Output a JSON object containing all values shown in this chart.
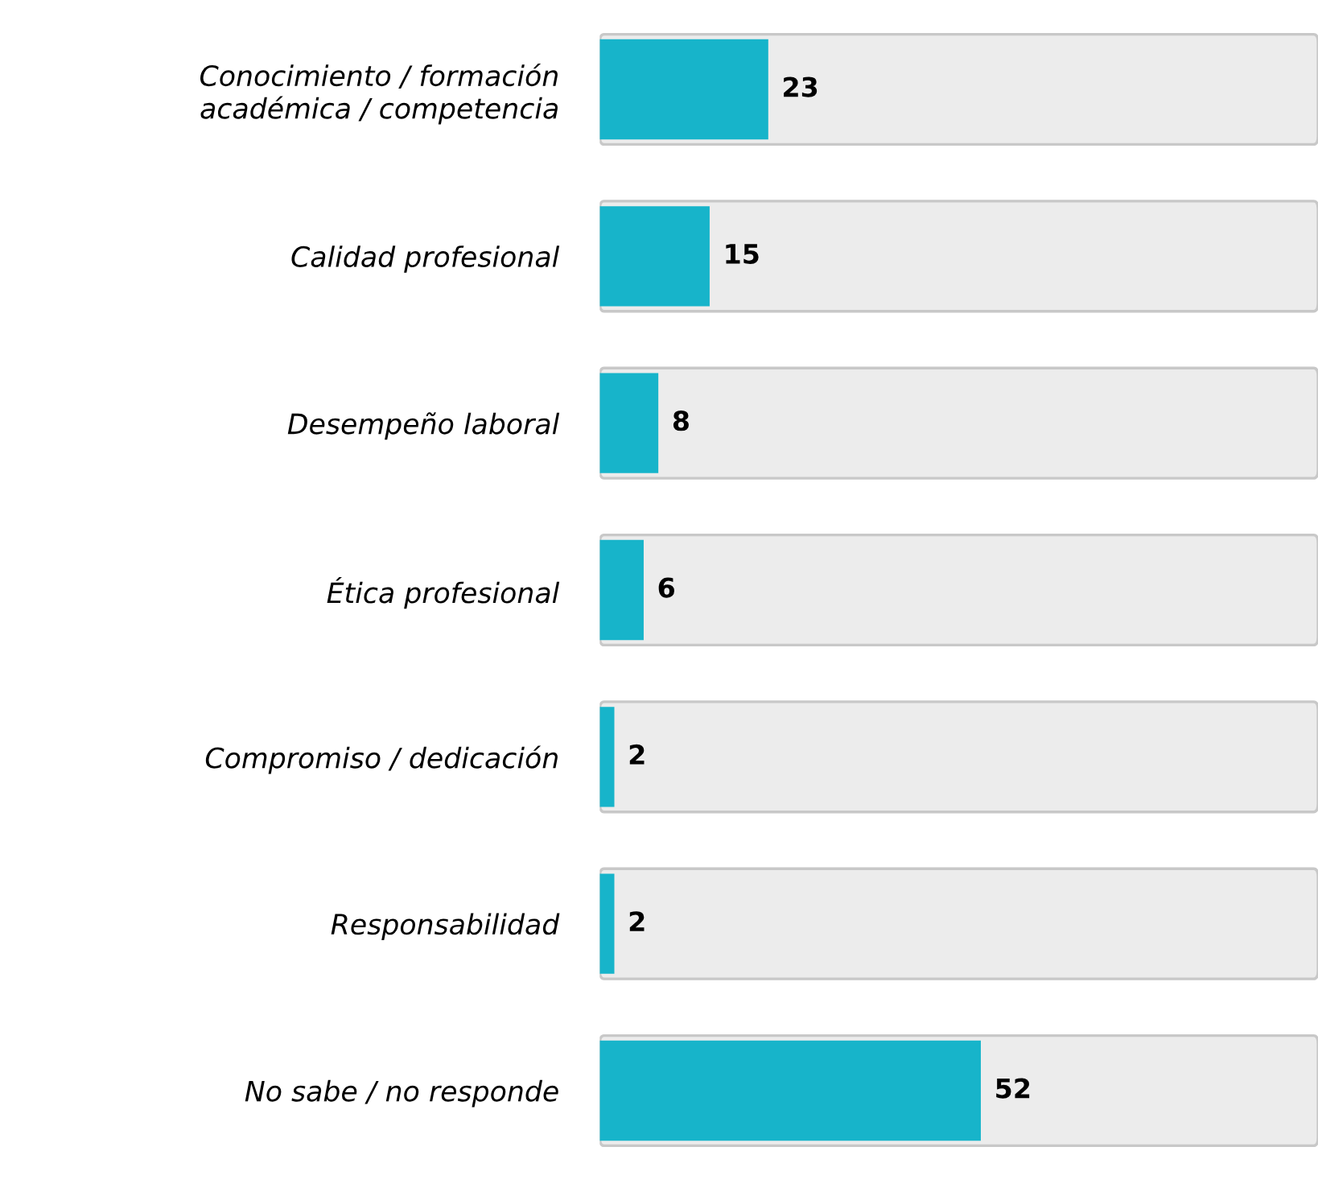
{
  "chart_data": {
    "type": "bar",
    "orientation": "horizontal",
    "categories": [
      "Conocimiento / formación\nacadémica / competencia",
      "Calidad profesional",
      "Desempeño laboral",
      "Ética profesional",
      "Compromiso / dedicación",
      "Responsabilidad",
      "No sabe / no responde"
    ],
    "values": [
      23,
      15,
      8,
      6,
      2,
      2,
      52
    ],
    "color": "#17b4ca",
    "xlim": [
      0,
      98
    ],
    "tick_labels": "y",
    "data_labels": true,
    "grid": false,
    "legend": false
  }
}
